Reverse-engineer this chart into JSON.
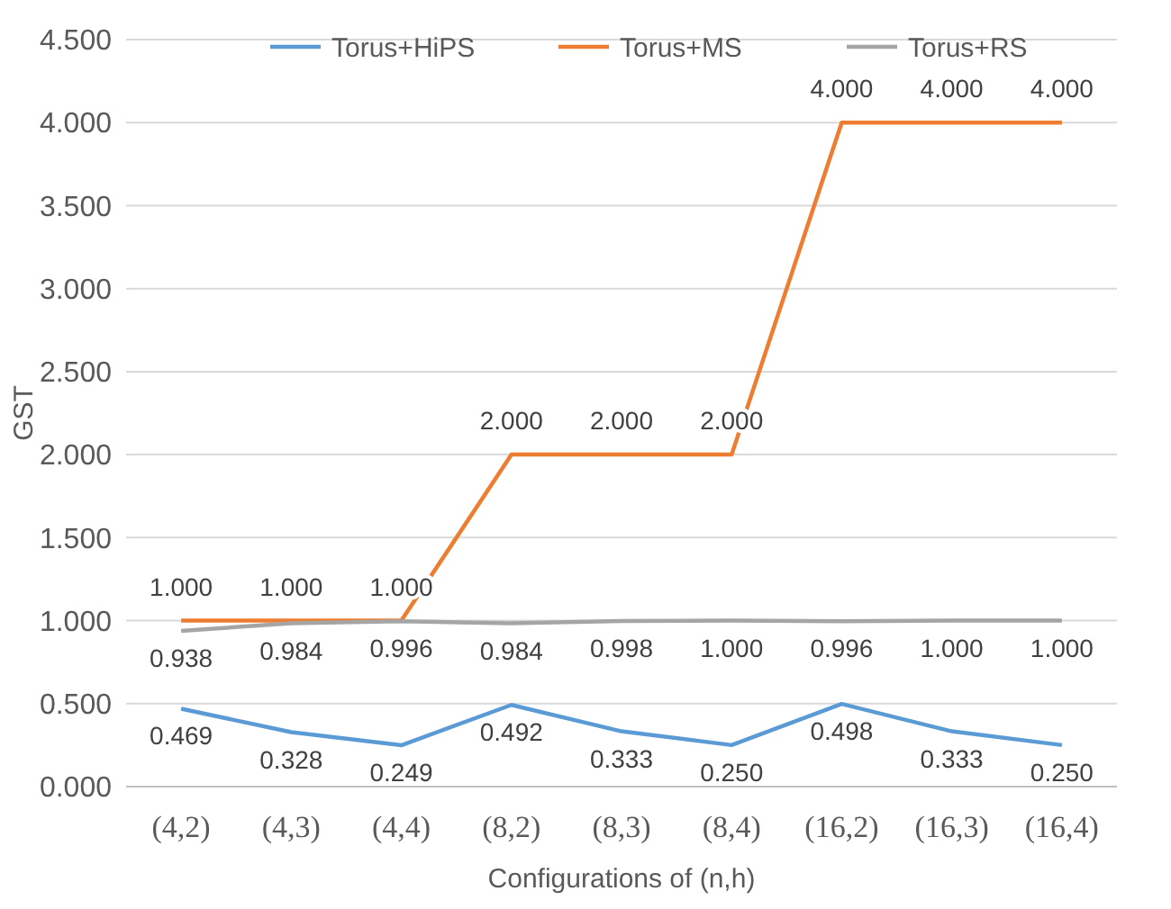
{
  "chart_data": {
    "type": "line",
    "xlabel": "Configurations of (n,h)",
    "ylabel": "GST",
    "categories": [
      "(4,2)",
      "(4,3)",
      "(4,4)",
      "(8,2)",
      "(8,3)",
      "(8,4)",
      "(16,2)",
      "(16,3)",
      "(16,4)"
    ],
    "series": [
      {
        "name": "Torus+HiPS",
        "color": "#5b9bd5",
        "values": [
          0.469,
          0.328,
          0.249,
          0.492,
          0.333,
          0.25,
          0.498,
          0.333,
          0.25
        ],
        "value_labels": [
          "0.469",
          "0.328",
          "0.249",
          "0.492",
          "0.333",
          "0.250",
          "0.498",
          "0.333",
          "0.250"
        ]
      },
      {
        "name": "Torus+MS",
        "color": "#ed7d31",
        "values": [
          1,
          1,
          1,
          2,
          2,
          2,
          4,
          4,
          4
        ],
        "value_labels": [
          "1.000",
          "1.000",
          "1.000",
          "2.000",
          "2.000",
          "2.000",
          "4.000",
          "4.000",
          "4.000"
        ]
      },
      {
        "name": "Torus+RS",
        "color": "#a5a5a5",
        "values": [
          0.938,
          0.984,
          0.996,
          0.984,
          0.998,
          1,
          0.996,
          1,
          1
        ],
        "value_labels": [
          "0.938",
          "0.984",
          "0.996",
          "0.984",
          "0.998",
          "1.000",
          "0.996",
          "1.000",
          "1.000"
        ]
      }
    ],
    "ylim": [
      0,
      4.5
    ],
    "yticks": [
      {
        "value": 0,
        "label": "0.000"
      },
      {
        "value": 0.5,
        "label": "0.500"
      },
      {
        "value": 1,
        "label": "1.000"
      },
      {
        "value": 1.5,
        "label": "1.500"
      },
      {
        "value": 2,
        "label": "2.000"
      },
      {
        "value": 2.5,
        "label": "2.500"
      },
      {
        "value": 3,
        "label": "3.000"
      },
      {
        "value": 3.5,
        "label": "3.500"
      },
      {
        "value": 4,
        "label": "4.000"
      },
      {
        "value": 4.5,
        "label": "4.500"
      }
    ],
    "grid": "y",
    "legend": "top",
    "marker": "none",
    "line_style": "solid"
  }
}
